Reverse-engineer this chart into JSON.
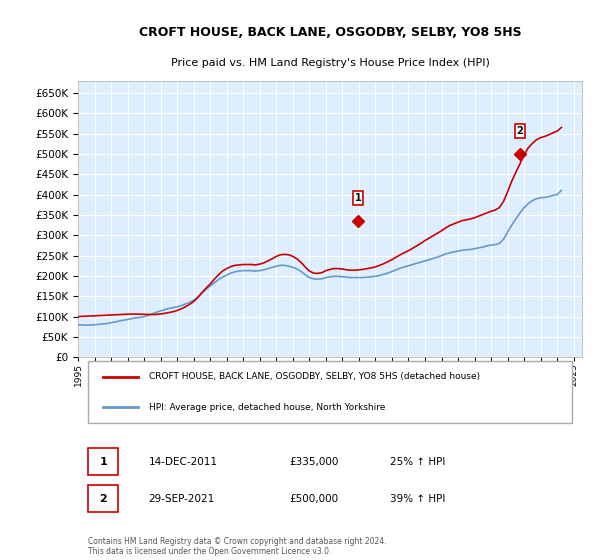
{
  "title1": "CROFT HOUSE, BACK LANE, OSGODBY, SELBY, YO8 5HS",
  "title2": "Price paid vs. HM Land Registry's House Price Index (HPI)",
  "legend_line1": "CROFT HOUSE, BACK LANE, OSGODBY, SELBY, YO8 5HS (detached house)",
  "legend_line2": "HPI: Average price, detached house, North Yorkshire",
  "annotation1_label": "1",
  "annotation1_date": "14-DEC-2011",
  "annotation1_price": "£335,000",
  "annotation1_hpi": "25% ↑ HPI",
  "annotation2_label": "2",
  "annotation2_date": "29-SEP-2021",
  "annotation2_price": "£500,000",
  "annotation2_hpi": "39% ↑ HPI",
  "footer": "Contains HM Land Registry data © Crown copyright and database right 2024.\nThis data is licensed under the Open Government Licence v3.0.",
  "red_color": "#cc0000",
  "blue_color": "#6699cc",
  "background_plot": "#ddeeff",
  "background_fig": "#ffffff",
  "grid_color": "#ffffff",
  "ylim": [
    0,
    680000
  ],
  "yticks": [
    0,
    50000,
    100000,
    150000,
    200000,
    250000,
    300000,
    350000,
    400000,
    450000,
    500000,
    550000,
    600000,
    650000
  ],
  "sale1_x": 2011.95,
  "sale1_y": 335000,
  "sale2_x": 2021.75,
  "sale2_y": 500000,
  "hpi_years": [
    1995.0,
    1995.25,
    1995.5,
    1995.75,
    1996.0,
    1996.25,
    1996.5,
    1996.75,
    1997.0,
    1997.25,
    1997.5,
    1997.75,
    1998.0,
    1998.25,
    1998.5,
    1998.75,
    1999.0,
    1999.25,
    1999.5,
    1999.75,
    2000.0,
    2000.25,
    2000.5,
    2000.75,
    2001.0,
    2001.25,
    2001.5,
    2001.75,
    2002.0,
    2002.25,
    2002.5,
    2002.75,
    2003.0,
    2003.25,
    2003.5,
    2003.75,
    2004.0,
    2004.25,
    2004.5,
    2004.75,
    2005.0,
    2005.25,
    2005.5,
    2005.75,
    2006.0,
    2006.25,
    2006.5,
    2006.75,
    2007.0,
    2007.25,
    2007.5,
    2007.75,
    2008.0,
    2008.25,
    2008.5,
    2008.75,
    2009.0,
    2009.25,
    2009.5,
    2009.75,
    2010.0,
    2010.25,
    2010.5,
    2010.75,
    2011.0,
    2011.25,
    2011.5,
    2011.75,
    2012.0,
    2012.25,
    2012.5,
    2012.75,
    2013.0,
    2013.25,
    2013.5,
    2013.75,
    2014.0,
    2014.25,
    2014.5,
    2014.75,
    2015.0,
    2015.25,
    2015.5,
    2015.75,
    2016.0,
    2016.25,
    2016.5,
    2016.75,
    2017.0,
    2017.25,
    2017.5,
    2017.75,
    2018.0,
    2018.25,
    2018.5,
    2018.75,
    2019.0,
    2019.25,
    2019.5,
    2019.75,
    2020.0,
    2020.25,
    2020.5,
    2020.75,
    2021.0,
    2021.25,
    2021.5,
    2021.75,
    2022.0,
    2022.25,
    2022.5,
    2022.75,
    2023.0,
    2023.25,
    2023.5,
    2023.75,
    2024.0,
    2024.25
  ],
  "hpi_values": [
    80000,
    79500,
    79000,
    79500,
    80000,
    81000,
    82000,
    83000,
    85000,
    87000,
    89000,
    91000,
    93000,
    95000,
    97000,
    98000,
    100000,
    103000,
    107000,
    111000,
    114000,
    117000,
    120000,
    122000,
    124000,
    127000,
    131000,
    135000,
    140000,
    148000,
    158000,
    167000,
    175000,
    183000,
    191000,
    197000,
    202000,
    207000,
    210000,
    212000,
    213000,
    213000,
    213000,
    212000,
    213000,
    215000,
    218000,
    221000,
    224000,
    226000,
    226000,
    224000,
    221000,
    217000,
    211000,
    203000,
    196000,
    193000,
    192000,
    193000,
    196000,
    198000,
    199000,
    199000,
    198000,
    197000,
    196000,
    196000,
    196000,
    196000,
    197000,
    198000,
    199000,
    201000,
    204000,
    207000,
    211000,
    215000,
    219000,
    222000,
    225000,
    228000,
    231000,
    234000,
    237000,
    240000,
    243000,
    246000,
    250000,
    254000,
    257000,
    259000,
    261000,
    263000,
    264000,
    265000,
    267000,
    269000,
    271000,
    274000,
    276000,
    277000,
    280000,
    290000,
    308000,
    325000,
    340000,
    355000,
    368000,
    378000,
    385000,
    390000,
    392000,
    393000,
    395000,
    398000,
    400000,
    410000
  ],
  "red_years": [
    1995.0,
    1995.25,
    1995.5,
    1995.75,
    1996.0,
    1996.25,
    1996.5,
    1996.75,
    1997.0,
    1997.25,
    1997.5,
    1997.75,
    1998.0,
    1998.25,
    1998.5,
    1998.75,
    1999.0,
    1999.25,
    1999.5,
    1999.75,
    2000.0,
    2000.25,
    2000.5,
    2000.75,
    2001.0,
    2001.25,
    2001.5,
    2001.75,
    2002.0,
    2002.25,
    2002.5,
    2002.75,
    2003.0,
    2003.25,
    2003.5,
    2003.75,
    2004.0,
    2004.25,
    2004.5,
    2004.75,
    2005.0,
    2005.25,
    2005.5,
    2005.75,
    2006.0,
    2006.25,
    2006.5,
    2006.75,
    2007.0,
    2007.25,
    2007.5,
    2007.75,
    2008.0,
    2008.25,
    2008.5,
    2008.75,
    2009.0,
    2009.25,
    2009.5,
    2009.75,
    2010.0,
    2010.25,
    2010.5,
    2010.75,
    2011.0,
    2011.25,
    2011.5,
    2011.75,
    2012.0,
    2012.25,
    2012.5,
    2012.75,
    2013.0,
    2013.25,
    2013.5,
    2013.75,
    2014.0,
    2014.25,
    2014.5,
    2014.75,
    2015.0,
    2015.25,
    2015.5,
    2015.75,
    2016.0,
    2016.25,
    2016.5,
    2016.75,
    2017.0,
    2017.25,
    2017.5,
    2017.75,
    2018.0,
    2018.25,
    2018.5,
    2018.75,
    2019.0,
    2019.25,
    2019.5,
    2019.75,
    2020.0,
    2020.25,
    2020.5,
    2020.75,
    2021.0,
    2021.25,
    2021.5,
    2021.75,
    2022.0,
    2022.25,
    2022.5,
    2022.75,
    2023.0,
    2023.25,
    2023.5,
    2023.75,
    2024.0,
    2024.25
  ],
  "red_values": [
    100000,
    100500,
    101000,
    101500,
    102000,
    102500,
    103000,
    103500,
    104000,
    104500,
    105000,
    105500,
    106000,
    106200,
    106300,
    106000,
    105500,
    105200,
    105000,
    105500,
    106500,
    108000,
    110000,
    112000,
    115000,
    119000,
    124000,
    130000,
    137000,
    147000,
    159000,
    170000,
    180000,
    192000,
    203000,
    212000,
    218000,
    223000,
    226000,
    227000,
    228000,
    228000,
    228000,
    227000,
    229000,
    232000,
    237000,
    242000,
    248000,
    252000,
    253000,
    252000,
    248000,
    242000,
    233000,
    222000,
    212000,
    207000,
    206000,
    208000,
    213000,
    216000,
    218000,
    218000,
    217000,
    215000,
    214000,
    214000,
    215000,
    216000,
    218000,
    220000,
    222000,
    226000,
    230000,
    235000,
    240000,
    246000,
    252000,
    257000,
    262000,
    268000,
    274000,
    280000,
    287000,
    293000,
    299000,
    305000,
    311000,
    318000,
    324000,
    328000,
    332000,
    336000,
    338000,
    340000,
    343000,
    347000,
    351000,
    355000,
    359000,
    362000,
    368000,
    383000,
    407000,
    433000,
    455000,
    476000,
    498000,
    515000,
    526000,
    535000,
    540000,
    543000,
    547000,
    552000,
    556000,
    565000
  ],
  "xtick_years": [
    1995,
    1996,
    1997,
    1998,
    1999,
    2000,
    2001,
    2002,
    2003,
    2004,
    2005,
    2006,
    2007,
    2008,
    2009,
    2010,
    2011,
    2012,
    2013,
    2014,
    2015,
    2016,
    2017,
    2018,
    2019,
    2020,
    2021,
    2022,
    2023,
    2024,
    2025
  ]
}
